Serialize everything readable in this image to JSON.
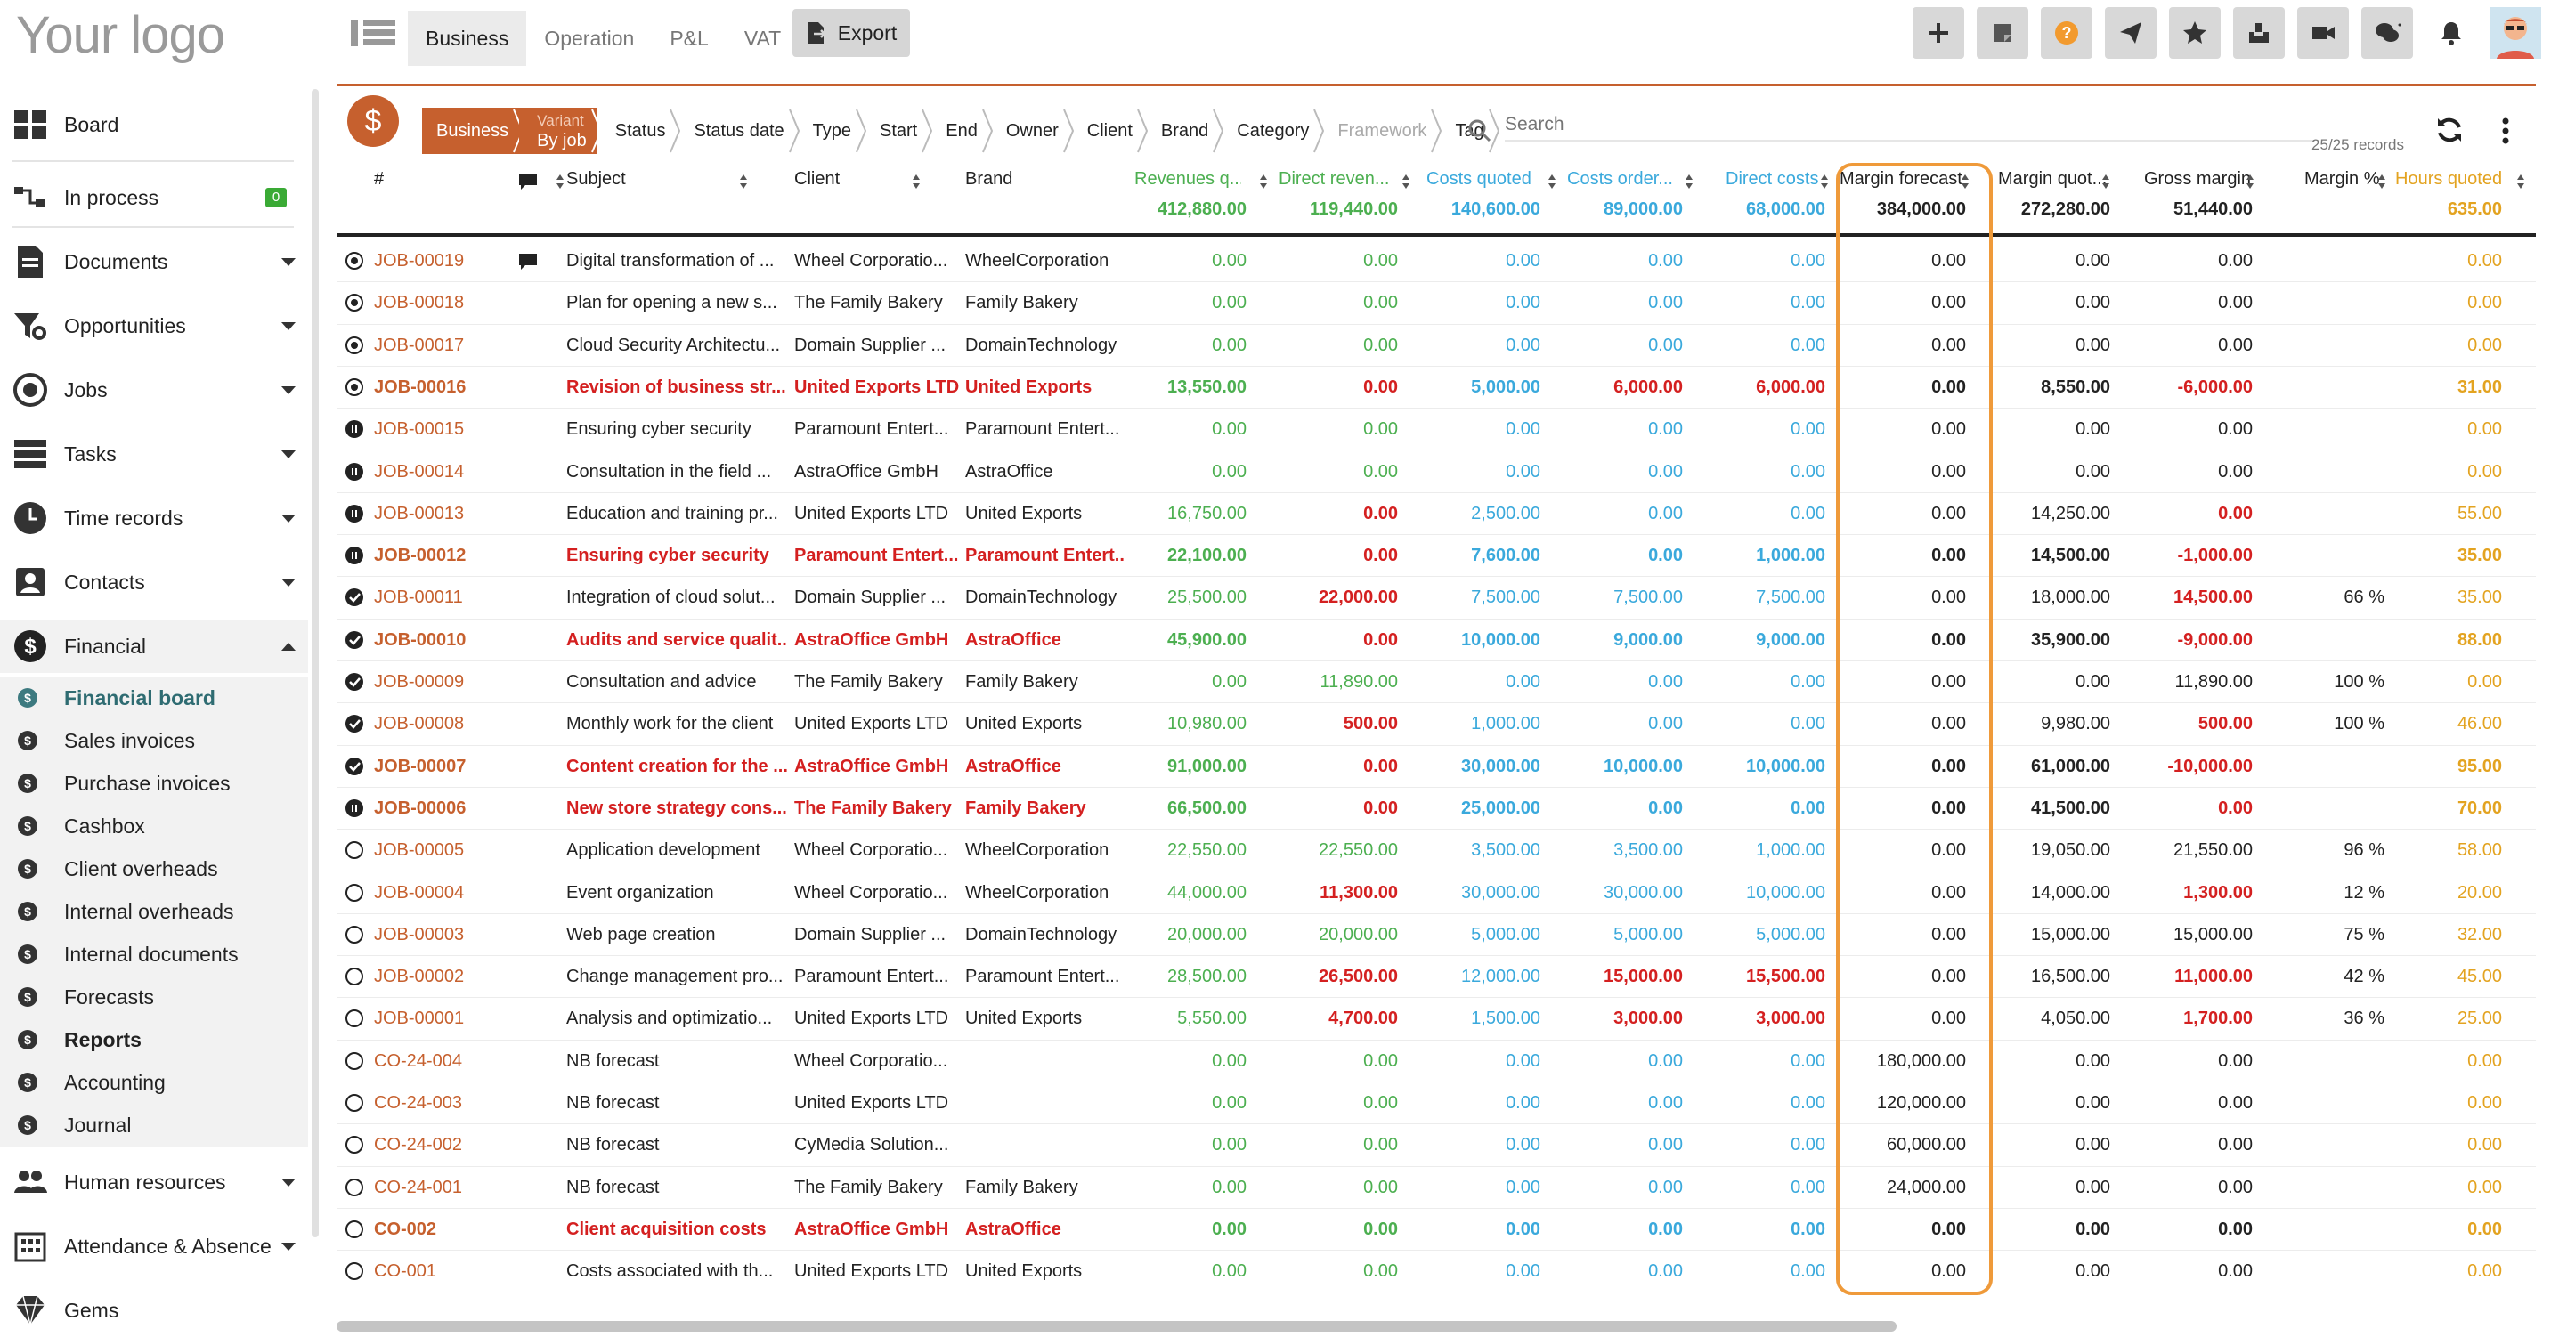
{
  "app": {
    "logo": "Your logo"
  },
  "top_tabs": [
    "Business",
    "Operation",
    "P&L",
    "VAT"
  ],
  "export_label": "Export",
  "header_icons": [
    "plus-icon",
    "note-icon",
    "help-icon",
    "send-icon",
    "star-icon",
    "inbox-icon",
    "video-icon",
    "chat-icon",
    "bell-icon"
  ],
  "sidebar": {
    "board": "Board",
    "in_process": "In process",
    "in_process_badge": "0",
    "documents": "Documents",
    "opportunities": "Opportunities",
    "jobs": "Jobs",
    "tasks": "Tasks",
    "time_records": "Time records",
    "contacts": "Contacts",
    "financial": "Financial",
    "sub": [
      "Financial board",
      "Sales invoices",
      "Purchase invoices",
      "Cashbox",
      "Client overheads",
      "Internal overheads",
      "Internal documents",
      "Forecasts",
      "Reports",
      "Accounting",
      "Journal"
    ],
    "human_resources": "Human resources",
    "attendance": "Attendance & Absence",
    "gems": "Gems"
  },
  "filters": {
    "first": "Business",
    "variant_label": "Variant",
    "variant_value": "By job",
    "items": [
      "Status",
      "Status date",
      "Type",
      "Start",
      "End",
      "Owner",
      "Client",
      "Brand",
      "Category",
      "Framework",
      "Tag"
    ]
  },
  "search": {
    "placeholder": "Search"
  },
  "records": "25/25 records",
  "columns": {
    "hash": "#",
    "subject": "Subject",
    "client": "Client",
    "brand": "Brand",
    "revq": "Revenues q...",
    "drev": "Direct reven...",
    "cq": "Costs quoted",
    "co": "Costs order...",
    "dc": "Direct costs",
    "mf": "Margin forecast",
    "mq": "Margin quot...",
    "gm": "Gross margin",
    "mp": "Margin %",
    "hq": "Hours quoted"
  },
  "totals": {
    "revq": "412,880.00",
    "drev": "119,440.00",
    "cq": "140,600.00",
    "co": "89,000.00",
    "dc": "68,000.00",
    "mf": "384,000.00",
    "mq": "272,280.00",
    "gm": "51,440.00",
    "hq": "635.00"
  },
  "rows": [
    {
      "s": "dot",
      "id": "JOB-00019",
      "c": true,
      "subj": "Digital transformation of ...",
      "cl": "Wheel Corporatio...",
      "br": "WheelCorporation",
      "revq": "0.00",
      "drev": "0.00",
      "cq": "0.00",
      "co": "0.00",
      "dc": "0.00",
      "mf": "0.00",
      "mq": "0.00",
      "gm": "0.00",
      "mp": "",
      "hq": "0.00",
      "red": false,
      "drevr": false,
      "cor": false,
      "dcr": false,
      "gmr": false,
      "bold": false
    },
    {
      "s": "dot",
      "id": "JOB-00018",
      "subj": "Plan for opening a new s...",
      "cl": "The Family Bakery",
      "br": "Family Bakery",
      "revq": "0.00",
      "drev": "0.00",
      "cq": "0.00",
      "co": "0.00",
      "dc": "0.00",
      "mf": "0.00",
      "mq": "0.00",
      "gm": "0.00",
      "mp": "",
      "hq": "0.00"
    },
    {
      "s": "dot",
      "id": "JOB-00017",
      "subj": "Cloud Security Architectu...",
      "cl": "Domain Supplier ...",
      "br": "DomainTechnology",
      "revq": "0.00",
      "drev": "0.00",
      "cq": "0.00",
      "co": "0.00",
      "dc": "0.00",
      "mf": "0.00",
      "mq": "0.00",
      "gm": "0.00",
      "mp": "",
      "hq": "0.00"
    },
    {
      "s": "dot",
      "id": "JOB-00016",
      "subj": "Revision of business str...",
      "cl": "United Exports LTD",
      "br": "United Exports",
      "revq": "13,550.00",
      "drev": "0.00",
      "cq": "5,000.00",
      "co": "6,000.00",
      "dc": "6,000.00",
      "mf": "0.00",
      "mq": "8,550.00",
      "gm": "-6,000.00",
      "mp": "",
      "hq": "31.00",
      "red": true,
      "bold": true,
      "drevr": true,
      "cor": true,
      "dcr": true,
      "gmr": true
    },
    {
      "s": "pause",
      "id": "JOB-00015",
      "subj": "Ensuring cyber security",
      "cl": "Paramount Entert...",
      "br": "Paramount Entert...",
      "revq": "0.00",
      "drev": "0.00",
      "cq": "0.00",
      "co": "0.00",
      "dc": "0.00",
      "mf": "0.00",
      "mq": "0.00",
      "gm": "0.00",
      "mp": "",
      "hq": "0.00"
    },
    {
      "s": "pause",
      "id": "JOB-00014",
      "subj": "Consultation in the field ...",
      "cl": "AstraOffice GmbH",
      "br": "AstraOffice",
      "revq": "0.00",
      "drev": "0.00",
      "cq": "0.00",
      "co": "0.00",
      "dc": "0.00",
      "mf": "0.00",
      "mq": "0.00",
      "gm": "0.00",
      "mp": "",
      "hq": "0.00"
    },
    {
      "s": "pause",
      "id": "JOB-00013",
      "subj": "Education and training pr...",
      "cl": "United Exports LTD",
      "br": "United Exports",
      "revq": "16,750.00",
      "drev": "0.00",
      "cq": "2,500.00",
      "co": "0.00",
      "dc": "0.00",
      "mf": "0.00",
      "mq": "14,250.00",
      "gm": "0.00",
      "mp": "",
      "hq": "55.00",
      "drevr": true,
      "gmr": true
    },
    {
      "s": "pause",
      "id": "JOB-00012",
      "subj": "Ensuring cyber security",
      "cl": "Paramount Entert...",
      "br": "Paramount Entert...",
      "revq": "22,100.00",
      "drev": "0.00",
      "cq": "7,600.00",
      "co": "0.00",
      "dc": "1,000.00",
      "mf": "0.00",
      "mq": "14,500.00",
      "gm": "-1,000.00",
      "mp": "",
      "hq": "35.00",
      "red": true,
      "bold": true,
      "drevr": true,
      "gmr": true
    },
    {
      "s": "check",
      "id": "JOB-00011",
      "subj": "Integration of cloud solut...",
      "cl": "Domain Supplier ...",
      "br": "DomainTechnology",
      "revq": "25,500.00",
      "drev": "22,000.00",
      "cq": "7,500.00",
      "co": "7,500.00",
      "dc": "7,500.00",
      "mf": "0.00",
      "mq": "18,000.00",
      "gm": "14,500.00",
      "mp": "66 %",
      "hq": "35.00",
      "drevr": true,
      "gmr": true
    },
    {
      "s": "check",
      "id": "JOB-00010",
      "subj": "Audits and service qualit...",
      "cl": "AstraOffice GmbH",
      "br": "AstraOffice",
      "revq": "45,900.00",
      "drev": "0.00",
      "cq": "10,000.00",
      "co": "9,000.00",
      "dc": "9,000.00",
      "mf": "0.00",
      "mq": "35,900.00",
      "gm": "-9,000.00",
      "mp": "",
      "hq": "88.00",
      "red": true,
      "bold": true,
      "drevr": true,
      "gmr": true
    },
    {
      "s": "check",
      "id": "JOB-00009",
      "subj": "Consultation and advice",
      "cl": "The Family Bakery",
      "br": "Family Bakery",
      "revq": "0.00",
      "drev": "11,890.00",
      "cq": "0.00",
      "co": "0.00",
      "dc": "0.00",
      "mf": "0.00",
      "mq": "0.00",
      "gm": "11,890.00",
      "mp": "100 %",
      "hq": "0.00"
    },
    {
      "s": "check",
      "id": "JOB-00008",
      "subj": "Monthly work for the client",
      "cl": "United Exports LTD",
      "br": "United Exports",
      "revq": "10,980.00",
      "drev": "500.00",
      "cq": "1,000.00",
      "co": "0.00",
      "dc": "0.00",
      "mf": "0.00",
      "mq": "9,980.00",
      "gm": "500.00",
      "mp": "100 %",
      "hq": "46.00",
      "drevr": true,
      "gmr": true
    },
    {
      "s": "check",
      "id": "JOB-00007",
      "subj": "Content creation for the ...",
      "cl": "AstraOffice GmbH",
      "br": "AstraOffice",
      "revq": "91,000.00",
      "drev": "0.00",
      "cq": "30,000.00",
      "co": "10,000.00",
      "dc": "10,000.00",
      "mf": "0.00",
      "mq": "61,000.00",
      "gm": "-10,000.00",
      "mp": "",
      "hq": "95.00",
      "red": true,
      "bold": true,
      "drevr": true,
      "gmr": true
    },
    {
      "s": "pause",
      "id": "JOB-00006",
      "subj": "New store strategy cons...",
      "cl": "The Family Bakery",
      "br": "Family Bakery",
      "revq": "66,500.00",
      "drev": "0.00",
      "cq": "25,000.00",
      "co": "0.00",
      "dc": "0.00",
      "mf": "0.00",
      "mq": "41,500.00",
      "gm": "0.00",
      "mp": "",
      "hq": "70.00",
      "red": true,
      "bold": true,
      "drevr": true,
      "gmr": true
    },
    {
      "s": "ring",
      "id": "JOB-00005",
      "subj": "Application development",
      "cl": "Wheel Corporatio...",
      "br": "WheelCorporation",
      "revq": "22,550.00",
      "drev": "22,550.00",
      "cq": "3,500.00",
      "co": "3,500.00",
      "dc": "1,000.00",
      "mf": "0.00",
      "mq": "19,050.00",
      "gm": "21,550.00",
      "mp": "96 %",
      "hq": "58.00"
    },
    {
      "s": "ring",
      "id": "JOB-00004",
      "subj": "Event organization",
      "cl": "Wheel Corporatio...",
      "br": "WheelCorporation",
      "revq": "44,000.00",
      "drev": "11,300.00",
      "cq": "30,000.00",
      "co": "30,000.00",
      "dc": "10,000.00",
      "mf": "0.00",
      "mq": "14,000.00",
      "gm": "1,300.00",
      "mp": "12 %",
      "hq": "20.00",
      "drevr": true,
      "gmr": true
    },
    {
      "s": "ring",
      "id": "JOB-00003",
      "subj": "Web page creation",
      "cl": "Domain Supplier ...",
      "br": "DomainTechnology",
      "revq": "20,000.00",
      "drev": "20,000.00",
      "cq": "5,000.00",
      "co": "5,000.00",
      "dc": "5,000.00",
      "mf": "0.00",
      "mq": "15,000.00",
      "gm": "15,000.00",
      "mp": "75 %",
      "hq": "32.00"
    },
    {
      "s": "ring",
      "id": "JOB-00002",
      "subj": "Change management pro...",
      "cl": "Paramount Entert...",
      "br": "Paramount Entert...",
      "revq": "28,500.00",
      "drev": "26,500.00",
      "cq": "12,000.00",
      "co": "15,000.00",
      "dc": "15,500.00",
      "mf": "0.00",
      "mq": "16,500.00",
      "gm": "11,000.00",
      "mp": "42 %",
      "hq": "45.00",
      "drevr": true,
      "cor": true,
      "dcr": true,
      "gmr": true
    },
    {
      "s": "ring",
      "id": "JOB-00001",
      "subj": "Analysis and optimizatio...",
      "cl": "United Exports LTD",
      "br": "United Exports",
      "revq": "5,550.00",
      "drev": "4,700.00",
      "cq": "1,500.00",
      "co": "3,000.00",
      "dc": "3,000.00",
      "mf": "0.00",
      "mq": "4,050.00",
      "gm": "1,700.00",
      "mp": "36 %",
      "hq": "25.00",
      "drevr": true,
      "cor": true,
      "dcr": true,
      "gmr": true
    },
    {
      "s": "ring",
      "id": "CO-24-004",
      "subj": "NB forecast",
      "cl": "Wheel Corporatio...",
      "br": "",
      "revq": "0.00",
      "drev": "0.00",
      "cq": "0.00",
      "co": "0.00",
      "dc": "0.00",
      "mf": "180,000.00",
      "mq": "0.00",
      "gm": "0.00",
      "mp": "",
      "hq": "0.00"
    },
    {
      "s": "ring",
      "id": "CO-24-003",
      "subj": "NB forecast",
      "cl": "United Exports LTD",
      "br": "",
      "revq": "0.00",
      "drev": "0.00",
      "cq": "0.00",
      "co": "0.00",
      "dc": "0.00",
      "mf": "120,000.00",
      "mq": "0.00",
      "gm": "0.00",
      "mp": "",
      "hq": "0.00"
    },
    {
      "s": "ring",
      "id": "CO-24-002",
      "subj": "NB forecast",
      "cl": "CyMedia Solution...",
      "br": "",
      "revq": "0.00",
      "drev": "0.00",
      "cq": "0.00",
      "co": "0.00",
      "dc": "0.00",
      "mf": "60,000.00",
      "mq": "0.00",
      "gm": "0.00",
      "mp": "",
      "hq": "0.00"
    },
    {
      "s": "ring",
      "id": "CO-24-001",
      "subj": "NB forecast",
      "cl": "The Family Bakery",
      "br": "Family Bakery",
      "revq": "0.00",
      "drev": "0.00",
      "cq": "0.00",
      "co": "0.00",
      "dc": "0.00",
      "mf": "24,000.00",
      "mq": "0.00",
      "gm": "0.00",
      "mp": "",
      "hq": "0.00"
    },
    {
      "s": "ring",
      "id": "CO-002",
      "subj": "Client acquisition costs",
      "cl": "AstraOffice GmbH",
      "br": "AstraOffice",
      "revq": "0.00",
      "drev": "0.00",
      "cq": "0.00",
      "co": "0.00",
      "dc": "0.00",
      "mf": "0.00",
      "mq": "0.00",
      "gm": "0.00",
      "mp": "",
      "hq": "0.00",
      "red": true,
      "bold": true
    },
    {
      "s": "ring",
      "id": "CO-001",
      "subj": "Costs associated with th...",
      "cl": "United Exports LTD",
      "br": "United Exports",
      "revq": "0.00",
      "drev": "0.00",
      "cq": "0.00",
      "co": "0.00",
      "dc": "0.00",
      "mf": "0.00",
      "mq": "0.00",
      "gm": "0.00",
      "mp": "",
      "hq": "0.00"
    }
  ],
  "colors": {
    "accent": "#c6602e",
    "green": "#4caf50",
    "blue": "#3aa9dc",
    "orange": "#e3a320",
    "red": "#d42020",
    "highlight": "#ef9a3a",
    "sidebar_active": "#2f6c72"
  }
}
